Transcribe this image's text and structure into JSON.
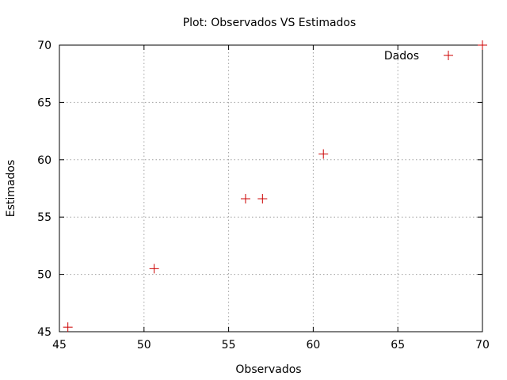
{
  "chart_data": {
    "type": "scatter",
    "title": "Plot: Observados VS Estimados",
    "xlabel": "Observados",
    "ylabel": "Estimados",
    "xlim": [
      45,
      70
    ],
    "ylim": [
      45,
      70
    ],
    "xticks": [
      45,
      50,
      55,
      60,
      65,
      70
    ],
    "yticks": [
      45,
      50,
      55,
      60,
      65,
      70
    ],
    "grid": true,
    "legend_position": "top-right",
    "series": [
      {
        "name": "Dados",
        "color": "#cc0000",
        "marker": "plus",
        "points": [
          {
            "x": 45.5,
            "y": 45.4
          },
          {
            "x": 50.6,
            "y": 50.5
          },
          {
            "x": 56.0,
            "y": 56.6
          },
          {
            "x": 57.0,
            "y": 56.6
          },
          {
            "x": 60.6,
            "y": 60.5
          },
          {
            "x": 70.0,
            "y": 70.0
          }
        ]
      }
    ]
  }
}
